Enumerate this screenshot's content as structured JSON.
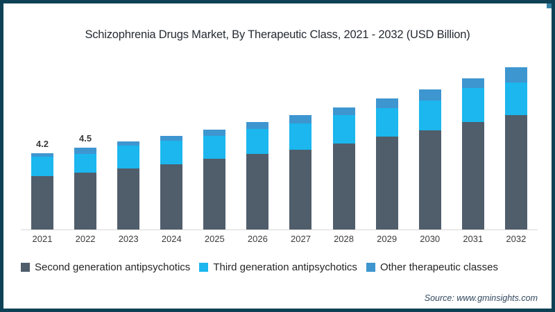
{
  "chart_data": {
    "type": "bar",
    "stacked": true,
    "title": "Schizophrenia Drugs Market, By Therapeutic Class, 2021 - 2032 (USD Billion)",
    "categories": [
      "2021",
      "2022",
      "2023",
      "2024",
      "2025",
      "2026",
      "2027",
      "2028",
      "2029",
      "2030",
      "2031",
      "2032"
    ],
    "series": [
      {
        "name": "Second generation antipsychotics",
        "color_key": "sga",
        "values": [
          2.95,
          3.15,
          3.35,
          3.6,
          3.9,
          4.15,
          4.4,
          4.75,
          5.1,
          5.45,
          5.9,
          6.3
        ]
      },
      {
        "name": "Third generation antipsychotics",
        "color_key": "tga",
        "values": [
          1.05,
          1.0,
          1.27,
          1.3,
          1.27,
          1.4,
          1.45,
          1.55,
          1.6,
          1.65,
          1.88,
          1.8
        ]
      },
      {
        "name": "Other therapeutic classes",
        "color_key": "other",
        "values": [
          0.2,
          0.35,
          0.23,
          0.25,
          0.33,
          0.38,
          0.43,
          0.42,
          0.5,
          0.6,
          0.55,
          0.82
        ]
      }
    ],
    "totals": [
      4.2,
      4.5,
      4.85,
      5.15,
      5.5,
      5.93,
      6.28,
      6.72,
      7.2,
      7.7,
      8.33,
      8.92
    ],
    "value_labels": {
      "2021": "4.2",
      "2022": "4.5"
    },
    "ylim": [
      0,
      9.35
    ],
    "gridlines": false,
    "baseline_axis": true,
    "legend_position": "bottom",
    "xlabel": "",
    "ylabel": ""
  },
  "source": "Source: www.gminsights.com",
  "colors": {
    "border": "#0e4156",
    "corner": "#3783a5",
    "sga": "#505d6b",
    "tga": "#1bb7ee",
    "other": "#3e96d0",
    "axis_line": "#d8d8d8",
    "title_text": "#262b33",
    "label_text": "#3a3a3a",
    "legend_text": "#252525",
    "source_text": "#34495e"
  }
}
